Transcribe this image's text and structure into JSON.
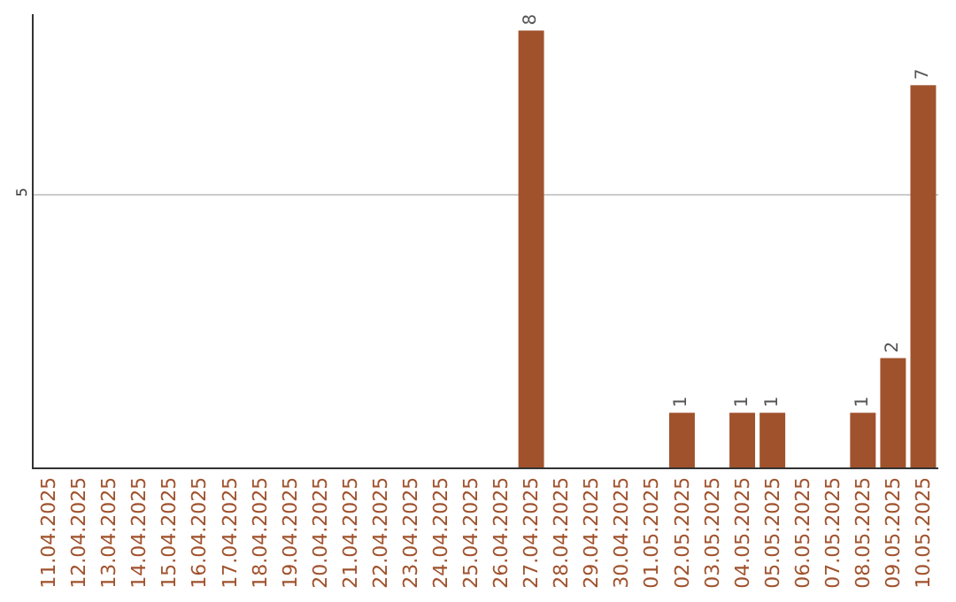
{
  "chart_data": {
    "type": "bar",
    "categories": [
      "11.04.2025",
      "12.04.2025",
      "13.04.2025",
      "14.04.2025",
      "15.04.2025",
      "16.04.2025",
      "17.04.2025",
      "18.04.2025",
      "19.04.2025",
      "20.04.2025",
      "21.04.2025",
      "22.04.2025",
      "23.04.2025",
      "24.04.2025",
      "25.04.2025",
      "26.04.2025",
      "27.04.2025",
      "28.04.2025",
      "29.04.2025",
      "30.04.2025",
      "01.05.2025",
      "02.05.2025",
      "03.05.2025",
      "04.05.2025",
      "05.05.2025",
      "06.05.2025",
      "07.05.2025",
      "08.05.2025",
      "09.05.2025",
      "10.05.2025"
    ],
    "values": [
      null,
      null,
      null,
      null,
      null,
      null,
      null,
      null,
      null,
      null,
      null,
      null,
      null,
      null,
      null,
      null,
      8,
      null,
      null,
      null,
      null,
      1,
      null,
      1,
      1,
      null,
      null,
      1,
      2,
      7
    ],
    "color": "#a0522d",
    "ylim": [
      0,
      8.3
    ],
    "yticks": [
      {
        "value": 0,
        "label": null
      },
      5
    ],
    "grid": "y",
    "data_labels": true
  }
}
